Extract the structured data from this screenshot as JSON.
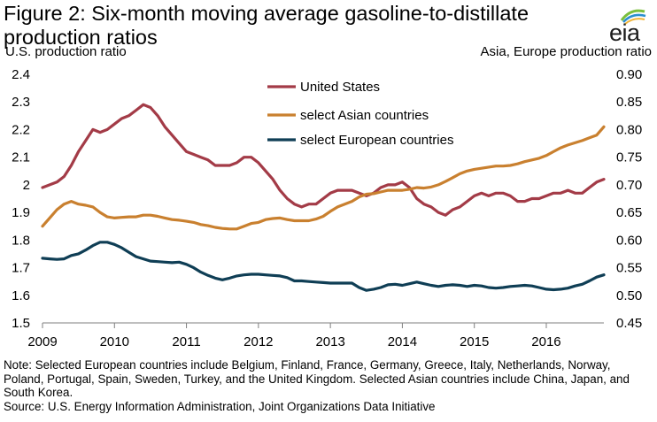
{
  "title": "Figure 2: Six-month moving average gasoline-to-distillate production ratios",
  "logo": {
    "text": "eia"
  },
  "left_axis_label": "U.S. production ratio",
  "right_axis_label": "Asia, Europe production ratio",
  "note": "Note: Selected European countries include Belgium, Finland, France, Germany, Greece, Italy, Netherlands, Norway, Poland, Portugal, Spain, Sweden, Turkey, and the United Kingdom.  Selected Asian countries include China, Japan, and South Korea.",
  "source": "Source: U.S. Energy Information Administration, Joint Organizations Data Initiative",
  "colors": {
    "us": "#a33b47",
    "asia": "#c9802f",
    "europe": "#0f3e55"
  },
  "chart_data": {
    "type": "line",
    "x_ticks": [
      "2009",
      "2010",
      "2011",
      "2012",
      "2013",
      "2014",
      "2015",
      "2016"
    ],
    "y_left": {
      "label": "U.S. production ratio",
      "lim": [
        1.5,
        2.4
      ],
      "ticks": [
        "1.5",
        "1.6",
        "1.7",
        "1.8",
        "1.9",
        "2",
        "2.1",
        "2.2",
        "2.3",
        "2.4"
      ]
    },
    "y_right": {
      "label": "Asia, Europe production ratio",
      "lim": [
        0.45,
        0.9
      ],
      "ticks": [
        "0.45",
        "0.50",
        "0.55",
        "0.60",
        "0.65",
        "0.70",
        "0.75",
        "0.80",
        "0.85",
        "0.90"
      ]
    },
    "legend_position": "top-center",
    "grid": false,
    "series": [
      {
        "name": "United States",
        "axis": "left",
        "color": "#a33b47",
        "points": [
          [
            2009.0,
            1.99
          ],
          [
            2009.1,
            2.0
          ],
          [
            2009.2,
            2.01
          ],
          [
            2009.3,
            2.03
          ],
          [
            2009.4,
            2.07
          ],
          [
            2009.5,
            2.12
          ],
          [
            2009.6,
            2.16
          ],
          [
            2009.7,
            2.2
          ],
          [
            2009.8,
            2.19
          ],
          [
            2009.9,
            2.2
          ],
          [
            2010.0,
            2.22
          ],
          [
            2010.1,
            2.24
          ],
          [
            2010.2,
            2.25
          ],
          [
            2010.3,
            2.27
          ],
          [
            2010.4,
            2.29
          ],
          [
            2010.5,
            2.28
          ],
          [
            2010.6,
            2.25
          ],
          [
            2010.7,
            2.21
          ],
          [
            2010.8,
            2.18
          ],
          [
            2010.9,
            2.15
          ],
          [
            2011.0,
            2.12
          ],
          [
            2011.1,
            2.11
          ],
          [
            2011.2,
            2.1
          ],
          [
            2011.3,
            2.09
          ],
          [
            2011.4,
            2.07
          ],
          [
            2011.5,
            2.07
          ],
          [
            2011.6,
            2.07
          ],
          [
            2011.7,
            2.08
          ],
          [
            2011.8,
            2.1
          ],
          [
            2011.9,
            2.1
          ],
          [
            2012.0,
            2.08
          ],
          [
            2012.1,
            2.05
          ],
          [
            2012.2,
            2.02
          ],
          [
            2012.3,
            1.98
          ],
          [
            2012.4,
            1.95
          ],
          [
            2012.5,
            1.93
          ],
          [
            2012.6,
            1.92
          ],
          [
            2012.7,
            1.93
          ],
          [
            2012.8,
            1.93
          ],
          [
            2012.9,
            1.95
          ],
          [
            2013.0,
            1.97
          ],
          [
            2013.1,
            1.98
          ],
          [
            2013.2,
            1.98
          ],
          [
            2013.3,
            1.98
          ],
          [
            2013.4,
            1.97
          ],
          [
            2013.5,
            1.96
          ],
          [
            2013.6,
            1.97
          ],
          [
            2013.7,
            1.99
          ],
          [
            2013.8,
            2.0
          ],
          [
            2013.9,
            2.0
          ],
          [
            2014.0,
            2.01
          ],
          [
            2014.1,
            1.99
          ],
          [
            2014.2,
            1.95
          ],
          [
            2014.3,
            1.93
          ],
          [
            2014.4,
            1.92
          ],
          [
            2014.5,
            1.9
          ],
          [
            2014.6,
            1.89
          ],
          [
            2014.7,
            1.91
          ],
          [
            2014.8,
            1.92
          ],
          [
            2014.9,
            1.94
          ],
          [
            2015.0,
            1.96
          ],
          [
            2015.1,
            1.97
          ],
          [
            2015.2,
            1.96
          ],
          [
            2015.3,
            1.97
          ],
          [
            2015.4,
            1.97
          ],
          [
            2015.5,
            1.96
          ],
          [
            2015.6,
            1.94
          ],
          [
            2015.7,
            1.94
          ],
          [
            2015.8,
            1.95
          ],
          [
            2015.9,
            1.95
          ],
          [
            2016.0,
            1.96
          ],
          [
            2016.1,
            1.97
          ],
          [
            2016.2,
            1.97
          ],
          [
            2016.3,
            1.98
          ],
          [
            2016.4,
            1.97
          ],
          [
            2016.5,
            1.97
          ],
          [
            2016.6,
            1.99
          ],
          [
            2016.7,
            2.01
          ],
          [
            2016.8,
            2.02
          ]
        ]
      },
      {
        "name": "select Asian countries",
        "axis": "right",
        "color": "#c9802f",
        "points": [
          [
            2009.0,
            0.625
          ],
          [
            2009.1,
            0.64
          ],
          [
            2009.2,
            0.655
          ],
          [
            2009.3,
            0.665
          ],
          [
            2009.4,
            0.67
          ],
          [
            2009.5,
            0.665
          ],
          [
            2009.6,
            0.663
          ],
          [
            2009.7,
            0.66
          ],
          [
            2009.8,
            0.65
          ],
          [
            2009.9,
            0.642
          ],
          [
            2010.0,
            0.64
          ],
          [
            2010.1,
            0.641
          ],
          [
            2010.2,
            0.642
          ],
          [
            2010.3,
            0.642
          ],
          [
            2010.4,
            0.645
          ],
          [
            2010.5,
            0.645
          ],
          [
            2010.6,
            0.643
          ],
          [
            2010.7,
            0.64
          ],
          [
            2010.8,
            0.637
          ],
          [
            2010.9,
            0.636
          ],
          [
            2011.0,
            0.634
          ],
          [
            2011.1,
            0.632
          ],
          [
            2011.2,
            0.628
          ],
          [
            2011.3,
            0.626
          ],
          [
            2011.4,
            0.623
          ],
          [
            2011.5,
            0.621
          ],
          [
            2011.6,
            0.62
          ],
          [
            2011.7,
            0.62
          ],
          [
            2011.8,
            0.625
          ],
          [
            2011.9,
            0.63
          ],
          [
            2012.0,
            0.632
          ],
          [
            2012.1,
            0.637
          ],
          [
            2012.2,
            0.639
          ],
          [
            2012.3,
            0.64
          ],
          [
            2012.4,
            0.637
          ],
          [
            2012.5,
            0.635
          ],
          [
            2012.6,
            0.635
          ],
          [
            2012.7,
            0.635
          ],
          [
            2012.8,
            0.638
          ],
          [
            2012.9,
            0.643
          ],
          [
            2013.0,
            0.652
          ],
          [
            2013.1,
            0.66
          ],
          [
            2013.2,
            0.665
          ],
          [
            2013.3,
            0.67
          ],
          [
            2013.4,
            0.678
          ],
          [
            2013.5,
            0.683
          ],
          [
            2013.6,
            0.684
          ],
          [
            2013.7,
            0.687
          ],
          [
            2013.8,
            0.69
          ],
          [
            2013.9,
            0.69
          ],
          [
            2014.0,
            0.69
          ],
          [
            2014.1,
            0.692
          ],
          [
            2014.2,
            0.695
          ],
          [
            2014.3,
            0.694
          ],
          [
            2014.4,
            0.696
          ],
          [
            2014.5,
            0.7
          ],
          [
            2014.6,
            0.706
          ],
          [
            2014.7,
            0.713
          ],
          [
            2014.8,
            0.72
          ],
          [
            2014.9,
            0.725
          ],
          [
            2015.0,
            0.728
          ],
          [
            2015.1,
            0.73
          ],
          [
            2015.2,
            0.732
          ],
          [
            2015.3,
            0.734
          ],
          [
            2015.4,
            0.734
          ],
          [
            2015.5,
            0.735
          ],
          [
            2015.6,
            0.738
          ],
          [
            2015.7,
            0.742
          ],
          [
            2015.8,
            0.745
          ],
          [
            2015.9,
            0.748
          ],
          [
            2016.0,
            0.753
          ],
          [
            2016.1,
            0.76
          ],
          [
            2016.2,
            0.767
          ],
          [
            2016.3,
            0.772
          ],
          [
            2016.4,
            0.776
          ],
          [
            2016.5,
            0.78
          ],
          [
            2016.6,
            0.785
          ],
          [
            2016.7,
            0.79
          ],
          [
            2016.8,
            0.805
          ]
        ]
      },
      {
        "name": "select European countries",
        "axis": "right",
        "color": "#0f3e55",
        "points": [
          [
            2009.0,
            0.567
          ],
          [
            2009.1,
            0.566
          ],
          [
            2009.2,
            0.565
          ],
          [
            2009.3,
            0.566
          ],
          [
            2009.4,
            0.572
          ],
          [
            2009.5,
            0.575
          ],
          [
            2009.6,
            0.582
          ],
          [
            2009.7,
            0.59
          ],
          [
            2009.8,
            0.596
          ],
          [
            2009.9,
            0.596
          ],
          [
            2010.0,
            0.592
          ],
          [
            2010.1,
            0.586
          ],
          [
            2010.2,
            0.578
          ],
          [
            2010.3,
            0.57
          ],
          [
            2010.4,
            0.566
          ],
          [
            2010.5,
            0.562
          ],
          [
            2010.6,
            0.561
          ],
          [
            2010.7,
            0.56
          ],
          [
            2010.8,
            0.559
          ],
          [
            2010.9,
            0.56
          ],
          [
            2011.0,
            0.556
          ],
          [
            2011.1,
            0.55
          ],
          [
            2011.2,
            0.542
          ],
          [
            2011.3,
            0.536
          ],
          [
            2011.4,
            0.531
          ],
          [
            2011.5,
            0.528
          ],
          [
            2011.6,
            0.531
          ],
          [
            2011.7,
            0.535
          ],
          [
            2011.8,
            0.537
          ],
          [
            2011.9,
            0.538
          ],
          [
            2012.0,
            0.538
          ],
          [
            2012.1,
            0.537
          ],
          [
            2012.2,
            0.536
          ],
          [
            2012.3,
            0.535
          ],
          [
            2012.4,
            0.532
          ],
          [
            2012.5,
            0.526
          ],
          [
            2012.6,
            0.526
          ],
          [
            2012.7,
            0.525
          ],
          [
            2012.8,
            0.524
          ],
          [
            2012.9,
            0.523
          ],
          [
            2013.0,
            0.522
          ],
          [
            2013.1,
            0.522
          ],
          [
            2013.2,
            0.522
          ],
          [
            2013.3,
            0.522
          ],
          [
            2013.4,
            0.514
          ],
          [
            2013.5,
            0.509
          ],
          [
            2013.6,
            0.511
          ],
          [
            2013.7,
            0.514
          ],
          [
            2013.8,
            0.519
          ],
          [
            2013.9,
            0.52
          ],
          [
            2014.0,
            0.518
          ],
          [
            2014.1,
            0.521
          ],
          [
            2014.2,
            0.524
          ],
          [
            2014.3,
            0.521
          ],
          [
            2014.4,
            0.518
          ],
          [
            2014.5,
            0.516
          ],
          [
            2014.6,
            0.518
          ],
          [
            2014.7,
            0.519
          ],
          [
            2014.8,
            0.518
          ],
          [
            2014.9,
            0.516
          ],
          [
            2015.0,
            0.518
          ],
          [
            2015.1,
            0.517
          ],
          [
            2015.2,
            0.514
          ],
          [
            2015.3,
            0.513
          ],
          [
            2015.4,
            0.514
          ],
          [
            2015.5,
            0.516
          ],
          [
            2015.6,
            0.517
          ],
          [
            2015.7,
            0.518
          ],
          [
            2015.8,
            0.517
          ],
          [
            2015.9,
            0.514
          ],
          [
            2016.0,
            0.511
          ],
          [
            2016.1,
            0.51
          ],
          [
            2016.2,
            0.511
          ],
          [
            2016.3,
            0.513
          ],
          [
            2016.4,
            0.517
          ],
          [
            2016.5,
            0.52
          ],
          [
            2016.6,
            0.526
          ],
          [
            2016.7,
            0.533
          ],
          [
            2016.8,
            0.537
          ]
        ]
      }
    ]
  }
}
